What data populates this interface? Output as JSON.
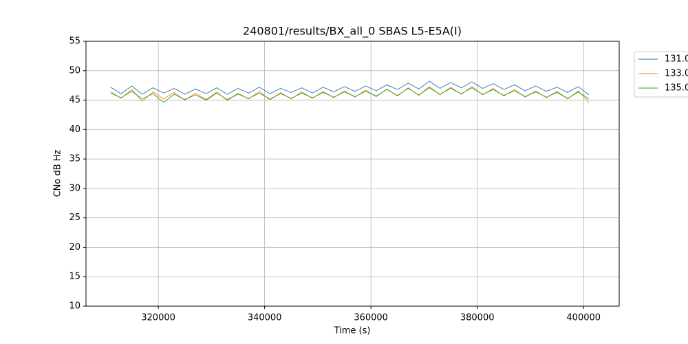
{
  "chart_data": {
    "type": "line",
    "title": "240801/results/BX_all_0 SBAS L5-E5A(I)",
    "xlabel": "Time (s)",
    "ylabel": "CNo dB Hz",
    "x": [
      311000,
      313000,
      315000,
      317000,
      319000,
      321000,
      323000,
      325000,
      327000,
      329000,
      331000,
      333000,
      335000,
      337000,
      339000,
      341000,
      343000,
      345000,
      347000,
      349000,
      351000,
      353000,
      355000,
      357000,
      359000,
      361000,
      363000,
      365000,
      367000,
      369000,
      371000,
      373000,
      375000,
      377000,
      379000,
      381000,
      383000,
      385000,
      387000,
      389000,
      391000,
      393000,
      395000,
      397000,
      399000,
      401000
    ],
    "series": [
      {
        "name": "131.0",
        "color": "#1f77b4",
        "values": [
          47.2,
          46.1,
          47.4,
          46.0,
          47.1,
          46.2,
          47.0,
          46.0,
          46.9,
          46.1,
          47.1,
          46.0,
          47.0,
          46.2,
          47.2,
          46.1,
          47.0,
          46.3,
          47.1,
          46.2,
          47.2,
          46.4,
          47.3,
          46.5,
          47.4,
          46.6,
          47.6,
          46.8,
          47.9,
          46.9,
          48.2,
          47.0,
          48.0,
          47.1,
          48.1,
          47.0,
          47.8,
          46.8,
          47.6,
          46.6,
          47.4,
          46.5,
          47.2,
          46.3,
          47.3,
          45.9
        ]
      },
      {
        "name": "133.0",
        "color": "#ff7f0e",
        "values": [
          46.5,
          45.3,
          46.8,
          44.8,
          46.4,
          45.2,
          46.3,
          45.0,
          46.2,
          45.1,
          46.4,
          44.9,
          46.2,
          45.2,
          46.5,
          45.0,
          46.3,
          45.2,
          46.4,
          45.3,
          46.5,
          45.4,
          46.6,
          45.5,
          46.7,
          45.6,
          46.9,
          45.7,
          47.1,
          45.8,
          47.3,
          45.9,
          47.2,
          46.0,
          47.3,
          45.9,
          47.0,
          45.7,
          46.8,
          45.5,
          46.6,
          45.4,
          46.5,
          45.2,
          46.6,
          44.6
        ]
      },
      {
        "name": "135.0",
        "color": "#2ca02c",
        "values": [
          46.2,
          45.4,
          46.5,
          45.2,
          46.1,
          44.6,
          46.0,
          45.1,
          45.9,
          45.0,
          46.2,
          45.1,
          46.0,
          45.3,
          46.2,
          45.2,
          46.1,
          45.3,
          46.2,
          45.4,
          46.3,
          45.5,
          46.4,
          45.6,
          46.5,
          45.7,
          46.8,
          45.8,
          47.0,
          45.9,
          47.1,
          46.0,
          47.0,
          46.1,
          47.1,
          46.0,
          46.8,
          45.8,
          46.6,
          45.6,
          46.4,
          45.5,
          46.3,
          45.3,
          46.4,
          45.2
        ]
      }
    ],
    "xlim": [
      306400,
      406700
    ],
    "ylim": [
      10,
      55
    ],
    "xticks": [
      320000,
      340000,
      360000,
      380000,
      400000
    ],
    "yticks": [
      10,
      15,
      20,
      25,
      30,
      35,
      40,
      45,
      50,
      55
    ],
    "grid": true
  }
}
